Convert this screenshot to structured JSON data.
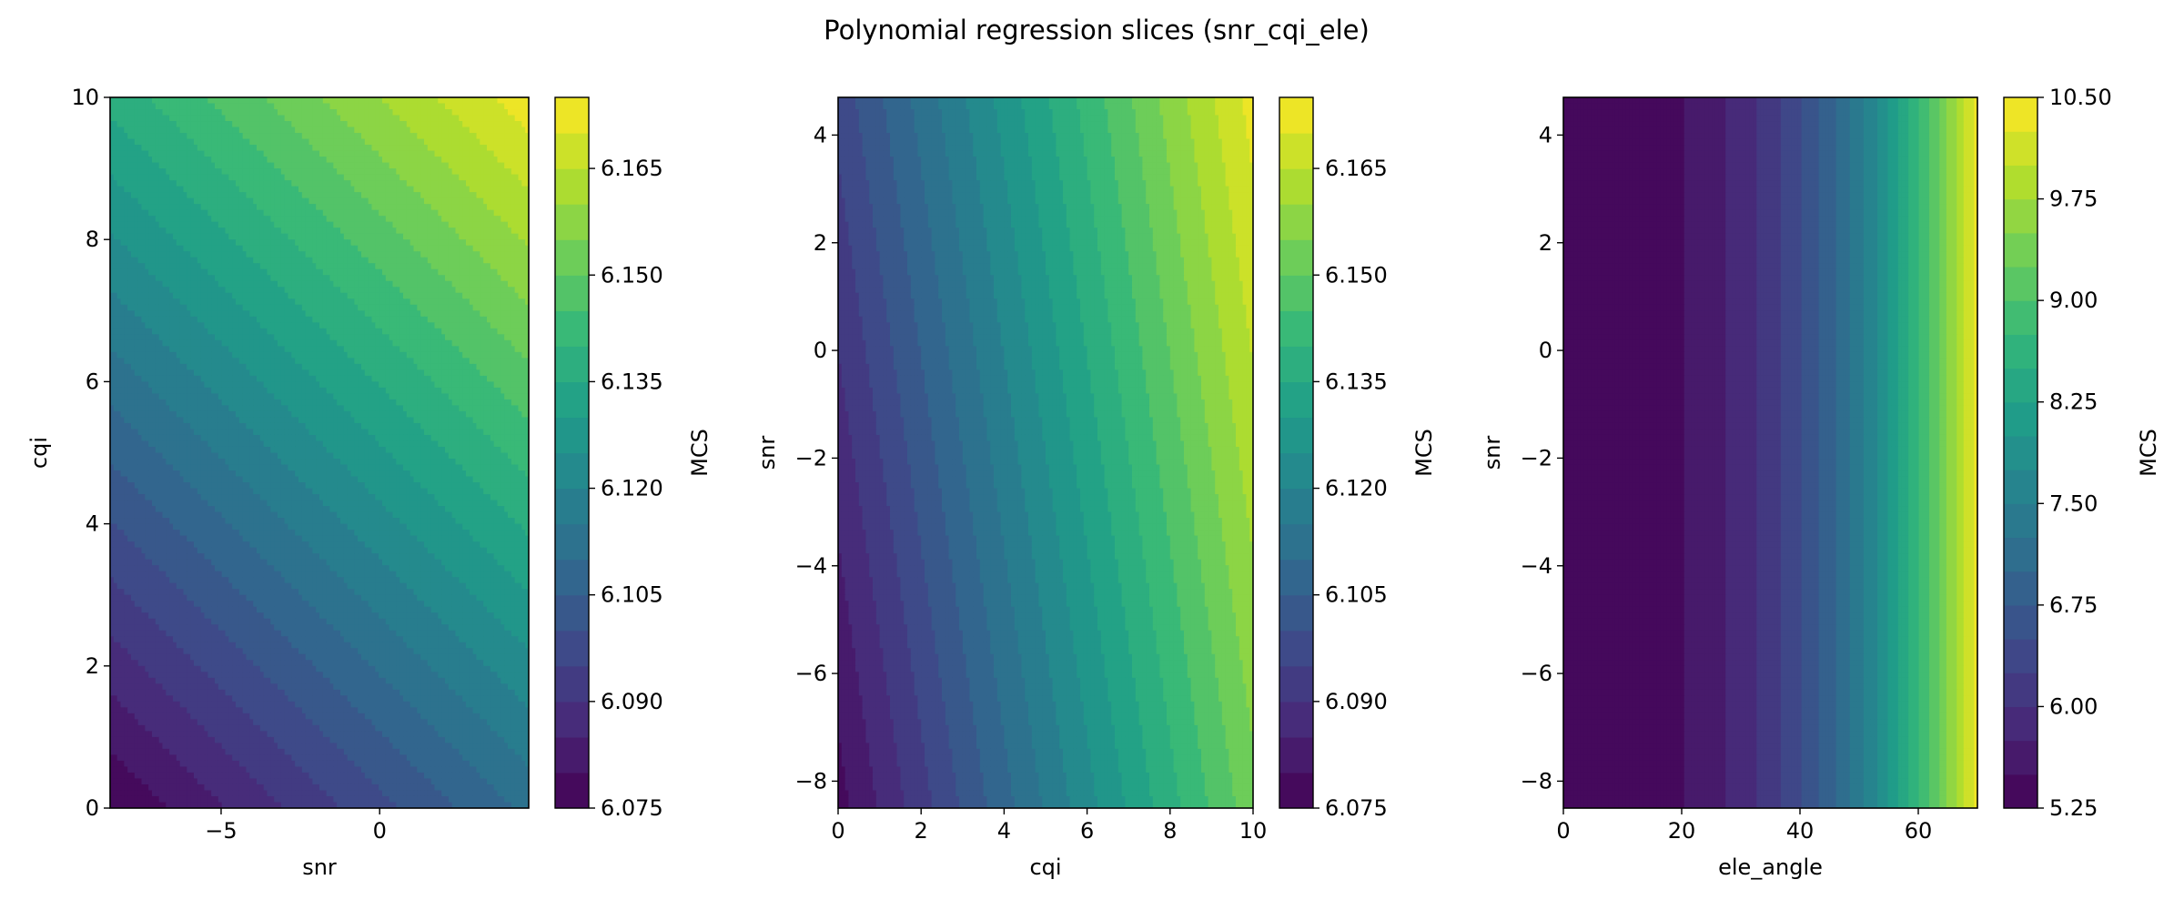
{
  "figure_title": "Polynomial regression slices (snr_cqi_ele)",
  "colormap": [
    "#440154",
    "#482878",
    "#3e4989",
    "#31688e",
    "#26828e",
    "#1f9e89",
    "#35b779",
    "#6ece58",
    "#b5de2b",
    "#fde725"
  ],
  "chart_data": [
    {
      "type": "contour",
      "xlabel": "snr",
      "ylabel": "cqi",
      "xlim": [
        -8.5,
        4.7
      ],
      "ylim": [
        0,
        10
      ],
      "xticks": [
        -5,
        0
      ],
      "yticks": [
        0,
        2,
        4,
        6,
        8,
        10
      ],
      "colorbar": {
        "label": "MCS",
        "range": [
          6.075,
          6.175
        ],
        "levels": 20,
        "ticks": [
          "6.075",
          "6.090",
          "6.105",
          "6.120",
          "6.135",
          "6.150",
          "6.165"
        ]
      },
      "surface": {
        "min": 6.075,
        "max": 6.173,
        "gradient_x": 0.5,
        "gradient_y": 0.85
      }
    },
    {
      "type": "contour",
      "xlabel": "cqi",
      "ylabel": "snr",
      "xlim": [
        0,
        10
      ],
      "ylim": [
        -8.5,
        4.7
      ],
      "xticks": [
        0,
        2,
        4,
        6,
        8,
        10
      ],
      "yticks": [
        -8,
        -6,
        -4,
        -2,
        0,
        2,
        4
      ],
      "colorbar": {
        "label": "MCS",
        "range": [
          6.075,
          6.175
        ],
        "levels": 20,
        "ticks": [
          "6.075",
          "6.090",
          "6.105",
          "6.120",
          "6.135",
          "6.150",
          "6.165"
        ]
      },
      "surface": {
        "min": 6.078,
        "max": 6.172,
        "gradient_x": 0.88,
        "gradient_y": 0.22
      }
    },
    {
      "type": "contour",
      "xlabel": "ele_angle",
      "ylabel": "snr",
      "xlim": [
        0,
        70
      ],
      "ylim": [
        -8.5,
        4.7
      ],
      "xticks": [
        0,
        20,
        40,
        60
      ],
      "yticks": [
        -8,
        -6,
        -4,
        -2,
        0,
        2,
        4
      ],
      "colorbar": {
        "label": "MCS",
        "range": [
          5.25,
          10.5
        ],
        "levels": 21,
        "ticks": [
          "5.25",
          "6.00",
          "6.75",
          "7.50",
          "8.25",
          "9.00",
          "9.75",
          "10.50"
        ]
      },
      "surface": {
        "min": 5.3,
        "max": 10.4,
        "gradient_x": 1.0,
        "gradient_y": 0.0,
        "quadratic_in_x": true
      }
    }
  ]
}
